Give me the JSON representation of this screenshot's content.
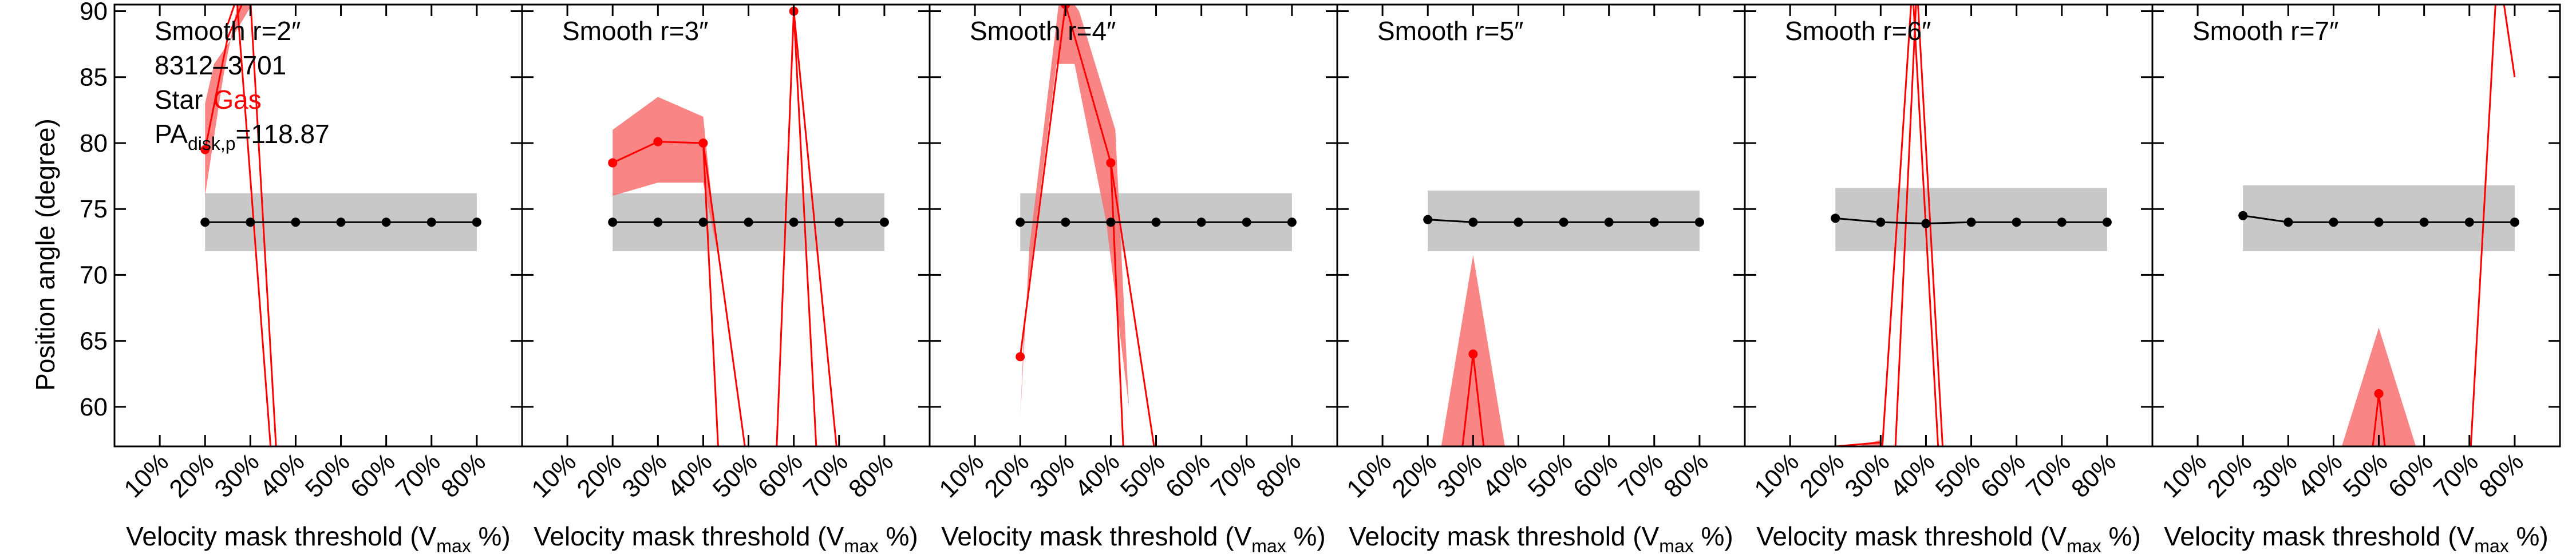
{
  "figure": {
    "ylabel": "Position angle (degree)",
    "xlabel_main": "Velocity mask threshold (V",
    "xlabel_sub": "max",
    "xlabel_end": " %)",
    "info": {
      "id": "8312–3701",
      "star_label": "Star",
      "gas_label": "Gas",
      "pa_main": "PA",
      "pa_sub": "disk,p",
      "pa_value": "=118.87"
    },
    "colors": {
      "star": "#000000",
      "gas": "#ff0000",
      "gas_band": "#f87070",
      "star_band": "#c8c8c8"
    }
  },
  "chart_data": [
    {
      "type": "line",
      "title": "Smooth r=2″",
      "x_tick_labels": [
        "10%",
        "20%",
        "30%",
        "40%",
        "50%",
        "60%",
        "70%",
        "80%"
      ],
      "x": [
        10,
        20,
        30,
        40,
        50,
        60,
        70,
        80
      ],
      "y_ticks": [
        60,
        65,
        70,
        75,
        80,
        85,
        90
      ],
      "xlim": [
        0,
        90
      ],
      "ylim": [
        57,
        90.5
      ],
      "star": {
        "x": [
          20,
          30,
          40,
          50,
          60,
          70,
          80
        ],
        "y": [
          74,
          74,
          74,
          74,
          74,
          74,
          74
        ],
        "band": [
          71.8,
          76.2
        ]
      },
      "gas": {
        "points": [
          [
            20,
            79.5
          ]
        ],
        "lines": [
          [
            [
              20,
              79.5
            ],
            [
              25,
              88
            ],
            [
              30,
              92
            ]
          ],
          [
            [
              25,
              89
            ],
            [
              27,
              91
            ]
          ],
          [
            [
              27,
              91
            ],
            [
              36,
              50
            ]
          ],
          [
            [
              30,
              91
            ],
            [
              36,
              55
            ]
          ]
        ],
        "band": [
          [
            20,
            76
          ],
          [
            24,
            85
          ],
          [
            28,
            92
          ],
          [
            33,
            92
          ],
          [
            26,
            88
          ],
          [
            22,
            86
          ],
          [
            20,
            83
          ]
        ]
      }
    },
    {
      "type": "line",
      "title": "Smooth r=3″",
      "x_tick_labels": [
        "10%",
        "20%",
        "30%",
        "40%",
        "50%",
        "60%",
        "70%",
        "80%"
      ],
      "x": [
        10,
        20,
        30,
        40,
        50,
        60,
        70,
        80
      ],
      "y_ticks": [
        60,
        65,
        70,
        75,
        80,
        85,
        90
      ],
      "xlim": [
        0,
        90
      ],
      "ylim": [
        57,
        90.5
      ],
      "star": {
        "x": [
          20,
          30,
          40,
          50,
          60,
          70,
          80
        ],
        "y": [
          74,
          74,
          74,
          74,
          74,
          74,
          74
        ],
        "band": [
          71.8,
          76.2
        ]
      },
      "gas": {
        "points": [
          [
            20,
            78.5
          ],
          [
            30,
            80.1
          ],
          [
            40,
            80
          ],
          [
            60,
            90
          ]
        ],
        "lines": [
          [
            [
              20,
              78.5
            ],
            [
              30,
              80.1
            ],
            [
              40,
              80
            ],
            [
              44,
              52
            ]
          ],
          [
            [
              40,
              80
            ],
            [
              50,
              55
            ]
          ],
          [
            [
              56,
              55
            ],
            [
              60,
              90
            ],
            [
              66,
              50
            ]
          ],
          [
            [
              60,
              90
            ],
            [
              70,
              55
            ]
          ]
        ],
        "band": [
          [
            20,
            81
          ],
          [
            30,
            83.5
          ],
          [
            40,
            82
          ],
          [
            43,
            72
          ],
          [
            40,
            77
          ],
          [
            30,
            77
          ],
          [
            20,
            76
          ]
        ]
      }
    },
    {
      "type": "line",
      "title": "Smooth r=4″",
      "x_tick_labels": [
        "10%",
        "20%",
        "30%",
        "40%",
        "50%",
        "60%",
        "70%",
        "80%"
      ],
      "x": [
        10,
        20,
        30,
        40,
        50,
        60,
        70,
        80
      ],
      "y_ticks": [
        60,
        65,
        70,
        75,
        80,
        85,
        90
      ],
      "xlim": [
        0,
        90
      ],
      "ylim": [
        57,
        90.5
      ],
      "star": {
        "x": [
          20,
          30,
          40,
          50,
          60,
          70,
          80
        ],
        "y": [
          74,
          74,
          74,
          74,
          74,
          74,
          74
        ],
        "band": [
          71.8,
          76.2
        ]
      },
      "gas": {
        "points": [
          [
            20,
            63.8
          ],
          [
            30,
            90.5
          ],
          [
            40,
            78.5
          ]
        ],
        "lines": [
          [
            [
              20,
              63.8
            ],
            [
              30,
              90.5
            ],
            [
              40,
              78.5
            ],
            [
              43,
              55
            ]
          ],
          [
            [
              40,
              78.5
            ],
            [
              50,
              56
            ]
          ]
        ],
        "band": [
          [
            20,
            59
          ],
          [
            22,
            72
          ],
          [
            29,
            92
          ],
          [
            33,
            90
          ],
          [
            41,
            81
          ],
          [
            44,
            60
          ],
          [
            39,
            74
          ],
          [
            32,
            86
          ],
          [
            28,
            86
          ],
          [
            21,
            67
          ]
        ]
      }
    },
    {
      "type": "line",
      "title": "Smooth r=5″",
      "x_tick_labels": [
        "10%",
        "20%",
        "30%",
        "40%",
        "50%",
        "60%",
        "70%",
        "80%"
      ],
      "x": [
        10,
        20,
        30,
        40,
        50,
        60,
        70,
        80
      ],
      "y_ticks": [
        60,
        65,
        70,
        75,
        80,
        85,
        90
      ],
      "xlim": [
        0,
        90
      ],
      "ylim": [
        57,
        90.5
      ],
      "star": {
        "x": [
          20,
          30,
          40,
          50,
          60,
          70,
          80
        ],
        "y": [
          74.2,
          74,
          74,
          74,
          74,
          74,
          74
        ],
        "band": [
          71.8,
          76.4
        ]
      },
      "gas": {
        "points": [
          [
            30,
            64
          ]
        ],
        "lines": [
          [
            [
              27,
              55
            ],
            [
              30,
              64
            ],
            [
              33,
              55
            ]
          ]
        ],
        "band": [
          [
            22,
            55
          ],
          [
            30,
            71.5
          ],
          [
            38,
            55
          ]
        ]
      }
    },
    {
      "type": "line",
      "title": "Smooth r=6″",
      "x_tick_labels": [
        "10%",
        "20%",
        "30%",
        "40%",
        "50%",
        "60%",
        "70%",
        "80%"
      ],
      "x": [
        10,
        20,
        30,
        40,
        50,
        60,
        70,
        80
      ],
      "y_ticks": [
        60,
        65,
        70,
        75,
        80,
        85,
        90
      ],
      "xlim": [
        0,
        90
      ],
      "ylim": [
        57,
        90.5
      ],
      "star": {
        "x": [
          20,
          30,
          40,
          50,
          60,
          70,
          80
        ],
        "y": [
          74.3,
          74,
          73.9,
          74,
          74,
          74,
          74
        ],
        "band": [
          71.8,
          76.6
        ]
      },
      "gas": {
        "points": [],
        "lines": [
          [
            [
              30,
              55
            ],
            [
              37,
              92
            ]
          ],
          [
            [
              33,
              55
            ],
            [
              38,
              92
            ]
          ],
          [
            [
              37,
              92
            ],
            [
              43,
              55
            ]
          ],
          [
            [
              38,
              92
            ],
            [
              44,
              55
            ]
          ],
          [
            [
              20,
              57
            ],
            [
              30,
              57.3
            ]
          ]
        ],
        "band": [
          [
            20,
            56.5
          ],
          [
            30,
            57.5
          ],
          [
            30,
            56.5
          ]
        ]
      }
    },
    {
      "type": "line",
      "title": "Smooth r=7″",
      "x_tick_labels": [
        "10%",
        "20%",
        "30%",
        "40%",
        "50%",
        "60%",
        "70%",
        "80%"
      ],
      "x": [
        10,
        20,
        30,
        40,
        50,
        60,
        70,
        80
      ],
      "y_ticks": [
        60,
        65,
        70,
        75,
        80,
        85,
        90
      ],
      "xlim": [
        0,
        90
      ],
      "ylim": [
        57,
        90.5
      ],
      "star": {
        "x": [
          20,
          30,
          40,
          50,
          60,
          70,
          80
        ],
        "y": [
          74.5,
          74,
          74,
          74,
          74,
          74,
          74
        ],
        "band": [
          71.8,
          76.8
        ]
      },
      "gas": {
        "points": [
          [
            50,
            61
          ]
        ],
        "lines": [
          [
            [
              48,
              55
            ],
            [
              50,
              61
            ],
            [
              52,
              55
            ]
          ],
          [
            [
              70,
              55
            ],
            [
              76,
              92
            ]
          ],
          [
            [
              77,
              92
            ],
            [
              80,
              85
            ]
          ]
        ],
        "band": [
          [
            40,
            55
          ],
          [
            50,
            66
          ],
          [
            60,
            55
          ]
        ]
      }
    }
  ]
}
